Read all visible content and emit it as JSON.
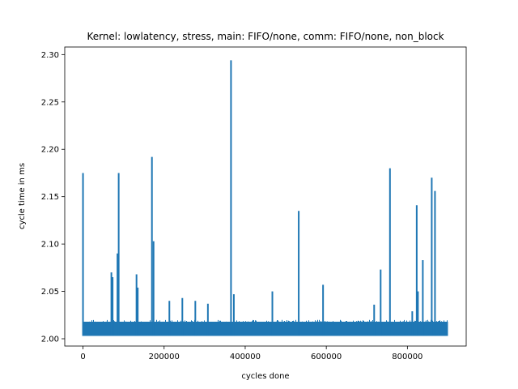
{
  "chart_data": {
    "type": "line",
    "title": "Kernel: lowlatency, stress, main: FIFO/none, comm: FIFO/none, non_block",
    "xlabel": "cycles done",
    "ylabel": "cycle time in ms",
    "xlim": [
      -45000,
      945000
    ],
    "ylim": [
      1.9923,
      2.308
    ],
    "xticks": [
      0,
      200000,
      400000,
      600000,
      800000
    ],
    "xtick_labels": [
      "0",
      "200000",
      "400000",
      "600000",
      "800000"
    ],
    "yticks": [
      2.0,
      2.05,
      2.1,
      2.15,
      2.2,
      2.25,
      2.3
    ],
    "ytick_labels": [
      "2.00",
      "2.05",
      "2.10",
      "2.15",
      "2.20",
      "2.25",
      "2.30"
    ],
    "grid": false,
    "legend": "none",
    "series_color": "#1f77b4",
    "baseline": {
      "x_start": 0,
      "x_end": 900000,
      "low": 2.003,
      "high": 2.018
    },
    "spikes": [
      {
        "x": 0,
        "y": 2.175
      },
      {
        "x": 70000,
        "y": 2.07
      },
      {
        "x": 73000,
        "y": 2.065
      },
      {
        "x": 85000,
        "y": 2.09
      },
      {
        "x": 88000,
        "y": 2.175
      },
      {
        "x": 132000,
        "y": 2.068
      },
      {
        "x": 135000,
        "y": 2.054
      },
      {
        "x": 170000,
        "y": 2.192
      },
      {
        "x": 174000,
        "y": 2.103
      },
      {
        "x": 213000,
        "y": 2.04
      },
      {
        "x": 245000,
        "y": 2.043
      },
      {
        "x": 277000,
        "y": 2.04
      },
      {
        "x": 308000,
        "y": 2.037
      },
      {
        "x": 365000,
        "y": 2.294
      },
      {
        "x": 372000,
        "y": 2.047
      },
      {
        "x": 467000,
        "y": 2.05
      },
      {
        "x": 532000,
        "y": 2.135
      },
      {
        "x": 592000,
        "y": 2.057
      },
      {
        "x": 718000,
        "y": 2.036
      },
      {
        "x": 734000,
        "y": 2.073
      },
      {
        "x": 757000,
        "y": 2.18
      },
      {
        "x": 812000,
        "y": 2.029
      },
      {
        "x": 823000,
        "y": 2.141
      },
      {
        "x": 826000,
        "y": 2.05
      },
      {
        "x": 838000,
        "y": 2.083
      },
      {
        "x": 860000,
        "y": 2.17
      },
      {
        "x": 868000,
        "y": 2.156
      }
    ]
  }
}
